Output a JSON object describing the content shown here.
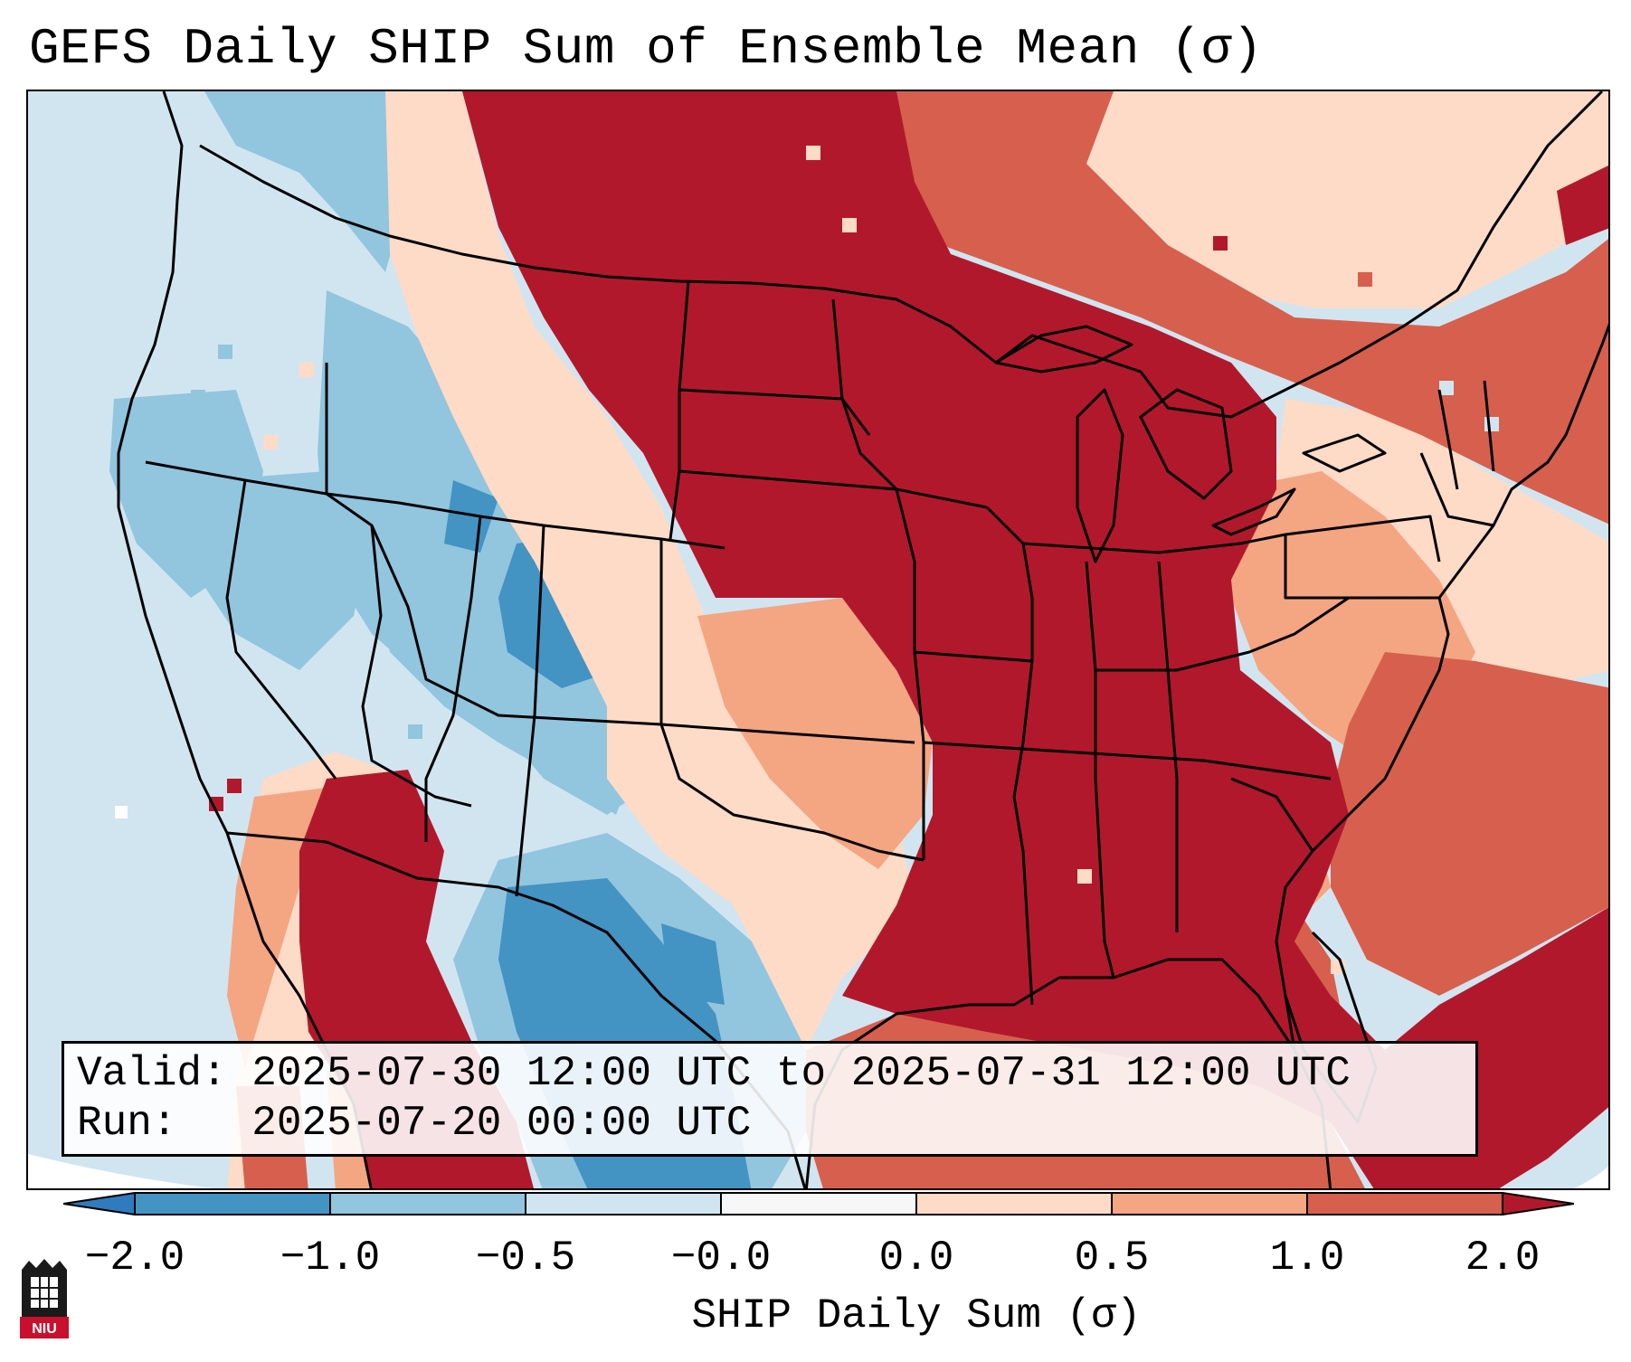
{
  "title": "GEFS Daily SHIP Sum of Ensemble Mean (σ)",
  "info": {
    "valid_label": "Valid:",
    "valid_value": "2025-07-30 12:00 UTC to 2025-07-31 12:00 UTC",
    "run_label": "Run:",
    "run_value": "2025-07-20 00:00 UTC"
  },
  "colorbar": {
    "label": "SHIP Daily Sum (σ)",
    "ticks": [
      "−2.0",
      "−1.0",
      "−0.5",
      "−0.0",
      "0.0",
      "0.5",
      "1.0",
      "2.0"
    ],
    "colors": [
      "#2f7bbd",
      "#4393c3",
      "#92c5de",
      "#d1e5f0",
      "#f7f7f7",
      "#fddbc7",
      "#f4a582",
      "#d6604d",
      "#b2182b"
    ]
  },
  "map": {
    "region": "Contiguous United States",
    "category_colors": {
      "very_low": "#4393c3",
      "low": "#92c5de",
      "slightly_low": "#d1e5f0",
      "slightly_high": "#fddbc7",
      "moderate": "#f4a582",
      "high": "#d6604d",
      "very_high": "#b2182b"
    }
  },
  "logo": {
    "text": "NIU"
  }
}
